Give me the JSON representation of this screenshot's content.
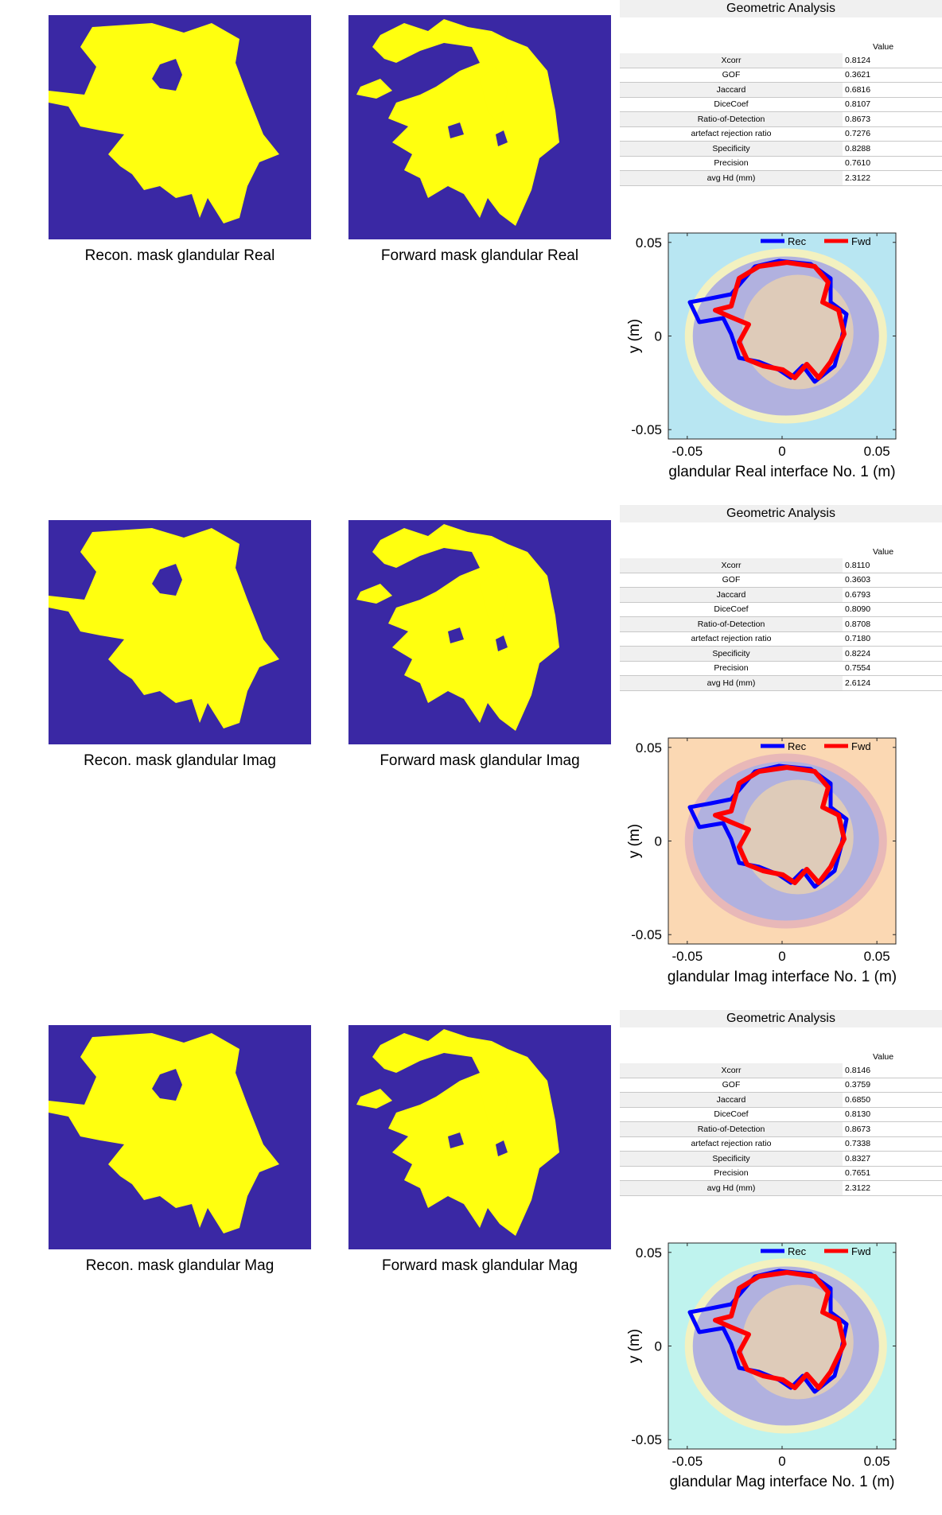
{
  "sections": [
    {
      "recon_caption": "Recon. mask glandular Real",
      "forward_caption": "Forward mask glandular Real",
      "table_title": "Geometric Analysis",
      "table_header": "Value",
      "rows": [
        {
          "label": "Xcorr",
          "value": "0.8124"
        },
        {
          "label": "GOF",
          "value": "0.3621"
        },
        {
          "label": "Jaccard",
          "value": "0.6816"
        },
        {
          "label": "DiceCoef",
          "value": "0.8107"
        },
        {
          "label": "Ratio-of-Detection",
          "value": "0.8673"
        },
        {
          "label": "artefact rejection ratio",
          "value": "0.7276"
        },
        {
          "label": "Specificity",
          "value": "0.8288"
        },
        {
          "label": "Precision",
          "value": "0.7610"
        },
        {
          "label": "avg Hd (mm)",
          "value": "2.3122"
        }
      ],
      "plot_bg": "#b8e6f2",
      "ring_color": "#f3f1c0"
    },
    {
      "recon_caption": "Recon. mask glandular Imag",
      "forward_caption": "Forward mask glandular Imag",
      "table_title": "Geometric Analysis",
      "table_header": "Value",
      "rows": [
        {
          "label": "Xcorr",
          "value": "0.8110"
        },
        {
          "label": "GOF",
          "value": "0.3603"
        },
        {
          "label": "Jaccard",
          "value": "0.6793"
        },
        {
          "label": "DiceCoef",
          "value": "0.8090"
        },
        {
          "label": "Ratio-of-Detection",
          "value": "0.8708"
        },
        {
          "label": "artefact rejection ratio",
          "value": "0.7180"
        },
        {
          "label": "Specificity",
          "value": "0.8224"
        },
        {
          "label": "Precision",
          "value": "0.7554"
        },
        {
          "label": "avg Hd (mm)",
          "value": "2.6124"
        }
      ],
      "plot_bg": "#fbd8b3",
      "ring_color": "#e8b8b8"
    },
    {
      "recon_caption": "Recon. mask glandular Mag",
      "forward_caption": "Forward mask glandular Mag",
      "table_title": "Geometric Analysis",
      "table_header": "Value",
      "rows": [
        {
          "label": "Xcorr",
          "value": "0.8146"
        },
        {
          "label": "GOF",
          "value": "0.3759"
        },
        {
          "label": "Jaccard",
          "value": "0.6850"
        },
        {
          "label": "DiceCoef",
          "value": "0.8130"
        },
        {
          "label": "Ratio-of-Detection",
          "value": "0.8673"
        },
        {
          "label": "artefact rejection ratio",
          "value": "0.7338"
        },
        {
          "label": "Specificity",
          "value": "0.8327"
        },
        {
          "label": "Precision",
          "value": "0.7651"
        },
        {
          "label": "avg Hd (mm)",
          "value": "2.3122"
        }
      ],
      "plot_bg": "#bff3ee",
      "ring_color": "#f3f1c0"
    }
  ],
  "chart_data": [
    {
      "type": "line",
      "xlabel": "glandular Real interface No. 1 (m)",
      "ylabel": "y (m)",
      "xlim": [
        -0.06,
        0.06
      ],
      "ylim": [
        -0.055,
        0.055
      ],
      "xticks": [
        "-0.05",
        "0",
        "0.05"
      ],
      "yticks": [
        "0.05",
        "0",
        "-0.05"
      ],
      "series": [
        {
          "name": "Rec",
          "color": "#0000ff"
        },
        {
          "name": "Fwd",
          "color": "#ff0000"
        }
      ]
    },
    {
      "type": "line",
      "xlabel": "glandular Imag interface No. 1 (m)",
      "ylabel": "y (m)",
      "xlim": [
        -0.06,
        0.06
      ],
      "ylim": [
        -0.055,
        0.055
      ],
      "xticks": [
        "-0.05",
        "0",
        "0.05"
      ],
      "yticks": [
        "0.05",
        "0",
        "-0.05"
      ],
      "series": [
        {
          "name": "Rec",
          "color": "#0000ff"
        },
        {
          "name": "Fwd",
          "color": "#ff0000"
        }
      ]
    },
    {
      "type": "line",
      "xlabel": "glandular Mag interface No. 1 (m)",
      "ylabel": "y (m)",
      "xlim": [
        -0.06,
        0.06
      ],
      "ylim": [
        -0.055,
        0.055
      ],
      "xticks": [
        "-0.05",
        "0",
        "0.05"
      ],
      "yticks": [
        "0.05",
        "0",
        "-0.05"
      ],
      "series": [
        {
          "name": "Rec",
          "color": "#0000ff"
        },
        {
          "name": "Fwd",
          "color": "#ff0000"
        }
      ]
    }
  ],
  "colors": {
    "mask_bg": "#3a28a4",
    "mask_fg": "#ffff0f",
    "rec": "#0000ff",
    "fwd": "#ff0000",
    "breast": "#b1b1df"
  }
}
